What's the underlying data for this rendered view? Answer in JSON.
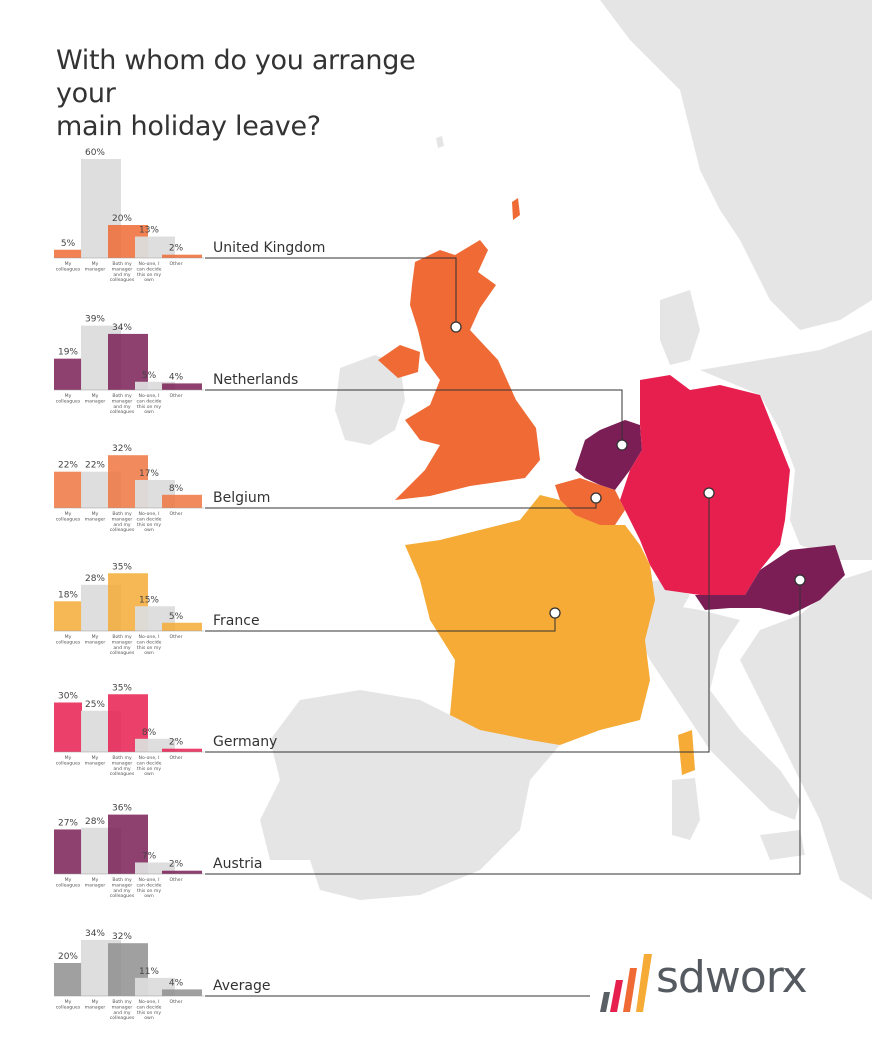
{
  "title_lines": [
    "With whom do you arrange your",
    "main holiday leave?"
  ],
  "logo": {
    "text": "sdworx"
  },
  "colors": {
    "uk": "#ef6a35",
    "netherlands": "#7a1e55",
    "belgium": "#ef7640",
    "france": "#f5ab36",
    "germany": "#e71f4f",
    "austria": "#7a1e55",
    "average": "#8f8f8f",
    "grey_bar": "#dcdcdc",
    "map_bg": "#e4e5e4"
  },
  "chart_data": {
    "type": "bar",
    "categories": [
      "My colleagues",
      "My manager",
      "Both my manager and my colleagues",
      "No-one, I can decide this on my own",
      "Other"
    ],
    "units": "%",
    "charts": [
      {
        "country": "United Kingdom",
        "values": [
          5,
          60,
          20,
          13,
          2
        ]
      },
      {
        "country": "Netherlands",
        "values": [
          19,
          39,
          34,
          5,
          4
        ]
      },
      {
        "country": "Belgium",
        "values": [
          22,
          22,
          32,
          17,
          8
        ]
      },
      {
        "country": "France",
        "values": [
          18,
          28,
          35,
          15,
          5
        ]
      },
      {
        "country": "Germany",
        "values": [
          30,
          25,
          35,
          8,
          2
        ]
      },
      {
        "country": "Austria",
        "values": [
          27,
          28,
          36,
          7,
          2
        ]
      },
      {
        "country": "Average",
        "values": [
          20,
          34,
          32,
          11,
          4
        ]
      }
    ]
  }
}
